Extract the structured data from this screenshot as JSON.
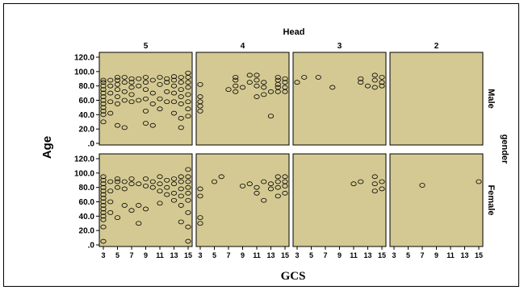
{
  "chart_data": {
    "type": "scatter",
    "title": "Head",
    "xlabel": "GCS",
    "ylabel": "Age",
    "row_variable": "gender",
    "column_labels": [
      "5",
      "4",
      "3",
      "2"
    ],
    "row_labels": [
      "Male",
      "Female"
    ],
    "x_ticks": [
      "3",
      "5",
      "7",
      "9",
      "11",
      "13",
      "15"
    ],
    "y_ticks": [
      ".0",
      "20.0",
      "40.0",
      "60.0",
      "80.0",
      "100.0",
      "120.0"
    ],
    "xlim": [
      3,
      15
    ],
    "ylim": [
      0,
      120
    ],
    "colors": {
      "panel_fill": "#d4c992",
      "marker_edge": "#000000",
      "frame": "#000000"
    },
    "panels": [
      {
        "column": "5",
        "row": "Male",
        "points": [
          [
            3,
            30
          ],
          [
            3,
            40
          ],
          [
            3,
            45
          ],
          [
            3,
            50
          ],
          [
            3,
            55
          ],
          [
            3,
            60
          ],
          [
            3,
            65
          ],
          [
            3,
            70
          ],
          [
            3,
            75
          ],
          [
            3,
            80
          ],
          [
            3,
            85
          ],
          [
            3,
            88
          ],
          [
            4,
            42
          ],
          [
            4,
            58
          ],
          [
            4,
            70
          ],
          [
            4,
            80
          ],
          [
            4,
            88
          ],
          [
            5,
            25
          ],
          [
            5,
            55
          ],
          [
            5,
            65
          ],
          [
            5,
            75
          ],
          [
            5,
            82
          ],
          [
            5,
            88
          ],
          [
            5,
            92
          ],
          [
            6,
            22
          ],
          [
            6,
            60
          ],
          [
            6,
            72
          ],
          [
            6,
            85
          ],
          [
            6,
            92
          ],
          [
            7,
            58
          ],
          [
            7,
            68
          ],
          [
            7,
            78
          ],
          [
            7,
            85
          ],
          [
            7,
            90
          ],
          [
            8,
            60
          ],
          [
            8,
            80
          ],
          [
            8,
            90
          ],
          [
            9,
            28
          ],
          [
            9,
            45
          ],
          [
            9,
            62
          ],
          [
            9,
            75
          ],
          [
            9,
            85
          ],
          [
            9,
            92
          ],
          [
            10,
            25
          ],
          [
            10,
            55
          ],
          [
            10,
            70
          ],
          [
            10,
            88
          ],
          [
            11,
            48
          ],
          [
            11,
            62
          ],
          [
            11,
            82
          ],
          [
            11,
            92
          ],
          [
            12,
            58
          ],
          [
            12,
            72
          ],
          [
            12,
            85
          ],
          [
            12,
            90
          ],
          [
            13,
            42
          ],
          [
            13,
            58
          ],
          [
            13,
            70
          ],
          [
            13,
            80
          ],
          [
            13,
            88
          ],
          [
            13,
            93
          ],
          [
            14,
            22
          ],
          [
            14,
            35
          ],
          [
            14,
            55
          ],
          [
            14,
            65
          ],
          [
            14,
            75
          ],
          [
            14,
            85
          ],
          [
            14,
            92
          ],
          [
            15,
            38
          ],
          [
            15,
            48
          ],
          [
            15,
            58
          ],
          [
            15,
            68
          ],
          [
            15,
            78
          ],
          [
            15,
            85
          ],
          [
            15,
            92
          ],
          [
            15,
            98
          ]
        ]
      },
      {
        "column": "4",
        "row": "Male",
        "points": [
          [
            3,
            45
          ],
          [
            3,
            52
          ],
          [
            3,
            58
          ],
          [
            3,
            65
          ],
          [
            3,
            82
          ],
          [
            7,
            75
          ],
          [
            8,
            72
          ],
          [
            8,
            80
          ],
          [
            8,
            88
          ],
          [
            8,
            92
          ],
          [
            9,
            78
          ],
          [
            10,
            85
          ],
          [
            10,
            95
          ],
          [
            11,
            65
          ],
          [
            11,
            80
          ],
          [
            11,
            88
          ],
          [
            11,
            95
          ],
          [
            12,
            68
          ],
          [
            12,
            78
          ],
          [
            12,
            85
          ],
          [
            13,
            38
          ],
          [
            13,
            72
          ],
          [
            14,
            72
          ],
          [
            14,
            78
          ],
          [
            14,
            82
          ],
          [
            14,
            88
          ],
          [
            14,
            92
          ],
          [
            15,
            72
          ],
          [
            15,
            78
          ],
          [
            15,
            85
          ],
          [
            15,
            90
          ]
        ]
      },
      {
        "column": "3",
        "row": "Male",
        "points": [
          [
            3,
            85
          ],
          [
            4,
            92
          ],
          [
            6,
            92
          ],
          [
            8,
            78
          ],
          [
            12,
            85
          ],
          [
            12,
            90
          ],
          [
            13,
            80
          ],
          [
            14,
            78
          ],
          [
            14,
            88
          ],
          [
            14,
            95
          ],
          [
            15,
            80
          ],
          [
            15,
            85
          ],
          [
            15,
            92
          ]
        ]
      },
      {
        "column": "2",
        "row": "Male",
        "points": []
      },
      {
        "column": "5",
        "row": "Female",
        "points": [
          [
            3,
            5
          ],
          [
            3,
            25
          ],
          [
            3,
            35
          ],
          [
            3,
            40
          ],
          [
            3,
            45
          ],
          [
            3,
            50
          ],
          [
            3,
            55
          ],
          [
            3,
            60
          ],
          [
            3,
            65
          ],
          [
            3,
            70
          ],
          [
            3,
            75
          ],
          [
            3,
            80
          ],
          [
            3,
            85
          ],
          [
            3,
            90
          ],
          [
            3,
            95
          ],
          [
            4,
            45
          ],
          [
            4,
            60
          ],
          [
            4,
            75
          ],
          [
            4,
            88
          ],
          [
            5,
            38
          ],
          [
            5,
            80
          ],
          [
            5,
            88
          ],
          [
            5,
            92
          ],
          [
            6,
            55
          ],
          [
            6,
            78
          ],
          [
            6,
            88
          ],
          [
            7,
            48
          ],
          [
            7,
            85
          ],
          [
            7,
            92
          ],
          [
            8,
            30
          ],
          [
            8,
            55
          ],
          [
            8,
            85
          ],
          [
            9,
            50
          ],
          [
            9,
            82
          ],
          [
            9,
            92
          ],
          [
            10,
            80
          ],
          [
            10,
            88
          ],
          [
            11,
            58
          ],
          [
            11,
            75
          ],
          [
            11,
            85
          ],
          [
            11,
            95
          ],
          [
            12,
            70
          ],
          [
            12,
            80
          ],
          [
            12,
            90
          ],
          [
            13,
            62
          ],
          [
            13,
            72
          ],
          [
            13,
            85
          ],
          [
            13,
            92
          ],
          [
            14,
            32
          ],
          [
            14,
            55
          ],
          [
            14,
            68
          ],
          [
            14,
            78
          ],
          [
            14,
            88
          ],
          [
            14,
            95
          ],
          [
            15,
            5
          ],
          [
            15,
            25
          ],
          [
            15,
            45
          ],
          [
            15,
            62
          ],
          [
            15,
            72
          ],
          [
            15,
            80
          ],
          [
            15,
            88
          ],
          [
            15,
            95
          ],
          [
            15,
            105
          ]
        ]
      },
      {
        "column": "4",
        "row": "Female",
        "points": [
          [
            3,
            30
          ],
          [
            3,
            38
          ],
          [
            3,
            68
          ],
          [
            3,
            78
          ],
          [
            5,
            88
          ],
          [
            6,
            95
          ],
          [
            9,
            82
          ],
          [
            10,
            85
          ],
          [
            11,
            72
          ],
          [
            11,
            80
          ],
          [
            12,
            62
          ],
          [
            12,
            88
          ],
          [
            13,
            78
          ],
          [
            13,
            85
          ],
          [
            14,
            68
          ],
          [
            14,
            80
          ],
          [
            14,
            88
          ],
          [
            14,
            95
          ],
          [
            15,
            72
          ],
          [
            15,
            82
          ],
          [
            15,
            88
          ],
          [
            15,
            95
          ]
        ]
      },
      {
        "column": "3",
        "row": "Female",
        "points": [
          [
            11,
            85
          ],
          [
            12,
            88
          ],
          [
            14,
            75
          ],
          [
            14,
            85
          ],
          [
            14,
            95
          ],
          [
            15,
            78
          ],
          [
            15,
            88
          ]
        ]
      },
      {
        "column": "2",
        "row": "Female",
        "points": [
          [
            7,
            83
          ],
          [
            15,
            88
          ]
        ]
      }
    ]
  }
}
